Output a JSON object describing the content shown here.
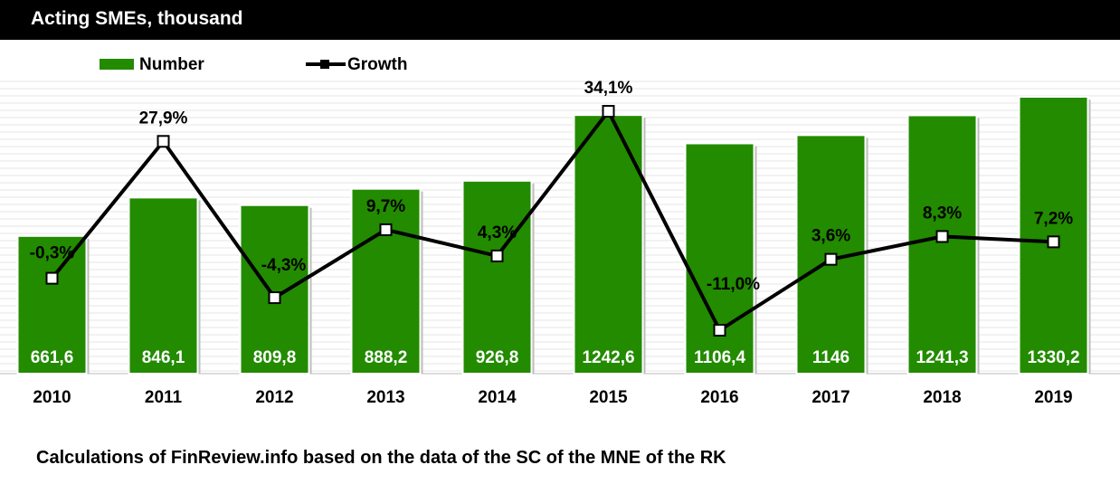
{
  "header": {
    "title": "Acting SMEs, thousand"
  },
  "footer": {
    "source": "Calculations of FinReview.info based on the data of the SC of the MNE of the RK"
  },
  "colors": {
    "bar": "#228B00",
    "line": "#000000",
    "marker_fill": "#ffffff"
  },
  "chart_data": {
    "type": "bar",
    "categories": [
      "2010",
      "2011",
      "2012",
      "2013",
      "2014",
      "2015",
      "2016",
      "2017",
      "2018",
      "2019"
    ],
    "series": [
      {
        "name": "Number",
        "type": "bar",
        "values": [
          661.6,
          846.1,
          809.8,
          888.2,
          926.8,
          1242.6,
          1106.4,
          1146,
          1241.3,
          1330.2
        ],
        "labels": [
          "661,6",
          "846,1",
          "809,8",
          "888,2",
          "926,8",
          "1242,6",
          "1106,4",
          "1146",
          "1241,3",
          "1330,2"
        ]
      },
      {
        "name": "Growth",
        "type": "line",
        "values": [
          -0.3,
          27.9,
          -4.3,
          9.7,
          4.3,
          34.1,
          -11.0,
          3.6,
          8.3,
          7.2
        ],
        "labels": [
          "-0,3%",
          "27,9%",
          "-4,3%",
          "9,7%",
          "4,3%",
          "34,1%",
          "-11,0%",
          "3,6%",
          "8,3%",
          "7,2%"
        ]
      }
    ],
    "legend": "top-left",
    "grid": true
  }
}
